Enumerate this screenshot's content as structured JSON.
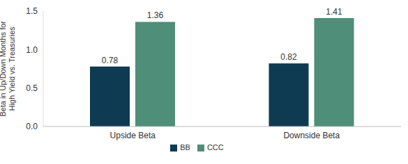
{
  "chart_data": {
    "type": "bar",
    "y_label": "Beta in Up/Down Months for High Yield vs. Treasuries",
    "categories": [
      "Upside Beta",
      "Downside Beta"
    ],
    "series": [
      {
        "name": "BB",
        "color": "#0e3a52",
        "values": [
          0.78,
          0.82
        ]
      },
      {
        "name": "CCC",
        "color": "#4f8e78",
        "values": [
          1.36,
          1.41
        ]
      }
    ],
    "ylim": [
      0,
      1.5
    ],
    "yticks": [
      {
        "value": 0,
        "label": "0.0"
      },
      0.5,
      {
        "value": 1,
        "label": "1.0"
      },
      1.5
    ],
    "grid": false,
    "legend": "bottom",
    "data_labels": true
  }
}
